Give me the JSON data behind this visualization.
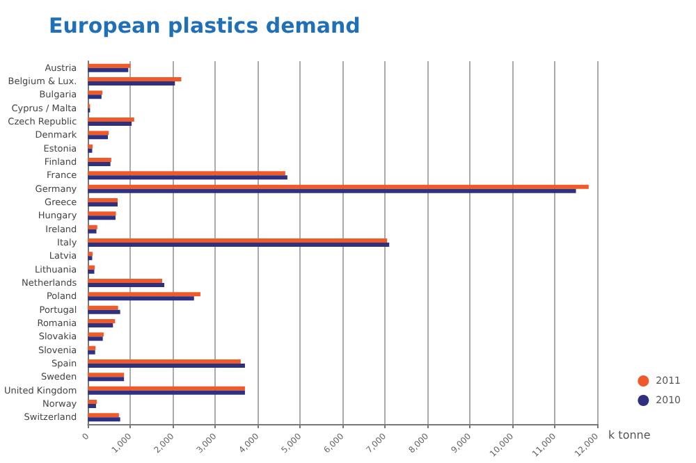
{
  "chart_data": {
    "type": "bar",
    "orientation": "horizontal",
    "title": "European plastics demand",
    "xlabel": "k tonne",
    "categories": [
      "Austria",
      "Belgium & Lux.",
      "Bulgaria",
      "Cyprus / Malta",
      "Czech Republic",
      "Denmark",
      "Estonia",
      "Finland",
      "France",
      "Germany",
      "Greece",
      "Hungary",
      "Ireland",
      "Italy",
      "Latvia",
      "Lithuania",
      "Netherlands",
      "Poland",
      "Portugal",
      "Romania",
      "Slovakia",
      "Slovenia",
      "Spain",
      "Sweden",
      "United Kingdom",
      "Norway",
      "Switzerland"
    ],
    "series": [
      {
        "name": "2011",
        "color": "#f05a28",
        "values": [
          1000,
          2200,
          340,
          50,
          1090,
          490,
          110,
          550,
          4650,
          11800,
          700,
          660,
          220,
          7050,
          110,
          160,
          1750,
          2650,
          710,
          640,
          370,
          180,
          3600,
          850,
          3700,
          210,
          730
        ]
      },
      {
        "name": "2010",
        "color": "#2e3080",
        "values": [
          950,
          2050,
          320,
          50,
          1030,
          470,
          100,
          530,
          4700,
          11500,
          700,
          650,
          200,
          7100,
          100,
          150,
          1800,
          2500,
          760,
          590,
          350,
          170,
          3700,
          850,
          3700,
          190,
          760
        ]
      }
    ],
    "xlim": [
      0,
      12000
    ],
    "xticks": [
      {
        "value": 0,
        "label": "0"
      },
      {
        "value": 1000,
        "label": "1,000"
      },
      {
        "value": 2000,
        "label": "2,000"
      },
      {
        "value": 3000,
        "label": "3,000"
      },
      {
        "value": 4000,
        "label": "4,000"
      },
      {
        "value": 5000,
        "label": "5,000"
      },
      {
        "value": 6000,
        "label": "6,000"
      },
      {
        "value": 7000,
        "label": "7,000"
      },
      {
        "value": 8000,
        "label": "8,000"
      },
      {
        "value": 9000,
        "label": "9,000"
      },
      {
        "value": 10000,
        "label": "10,000"
      },
      {
        "value": 11000,
        "label": "11,000"
      },
      {
        "value": 12000,
        "label": "12,000"
      }
    ],
    "grid": "x",
    "legend": "bottom right"
  }
}
